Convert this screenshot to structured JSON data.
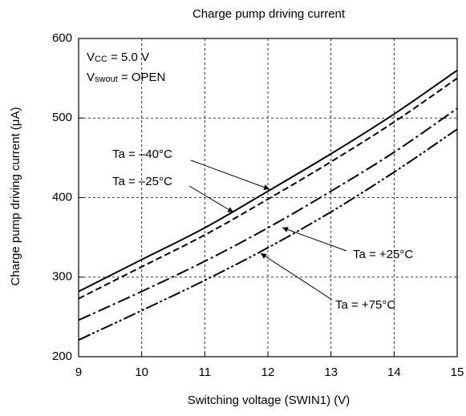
{
  "chart_data": {
    "type": "line",
    "title": "Charge pump driving current",
    "xlabel": "Switching voltage (SWIN1) (V)",
    "ylabel": "Charge pump driving current (μA)",
    "x": [
      9,
      10,
      11,
      12,
      13,
      14,
      15
    ],
    "xlim": [
      9,
      15
    ],
    "xticks": [
      9,
      10,
      11,
      12,
      13,
      14,
      15
    ],
    "ylim": [
      200,
      600
    ],
    "yticks": [
      200,
      300,
      400,
      500,
      600
    ],
    "grid": true,
    "notes": [
      {
        "main": "V",
        "sub": "CC",
        "rest": " = 5.0 V"
      },
      {
        "main": "V",
        "sub": "swout",
        "rest": " = OPEN"
      }
    ],
    "series": [
      {
        "name": "Ta = –40°C",
        "color": "#000000",
        "dash": "solid",
        "values": [
          282,
          322,
          362,
          408,
          455,
          505,
          560
        ]
      },
      {
        "name": "Ta = –25°C",
        "color": "#000000",
        "dash": "dashed",
        "values": [
          273,
          313,
          353,
          398,
          445,
          495,
          550
        ]
      },
      {
        "name": "Ta = +25°C",
        "color": "#000000",
        "dash": "dashdot",
        "values": [
          246,
          282,
          320,
          362,
          408,
          457,
          512
        ]
      },
      {
        "name": "Ta = +75°C",
        "color": "#000000",
        "dash": "dashdotdot",
        "values": [
          221,
          258,
          296,
          337,
          382,
          432,
          486
        ]
      }
    ]
  }
}
